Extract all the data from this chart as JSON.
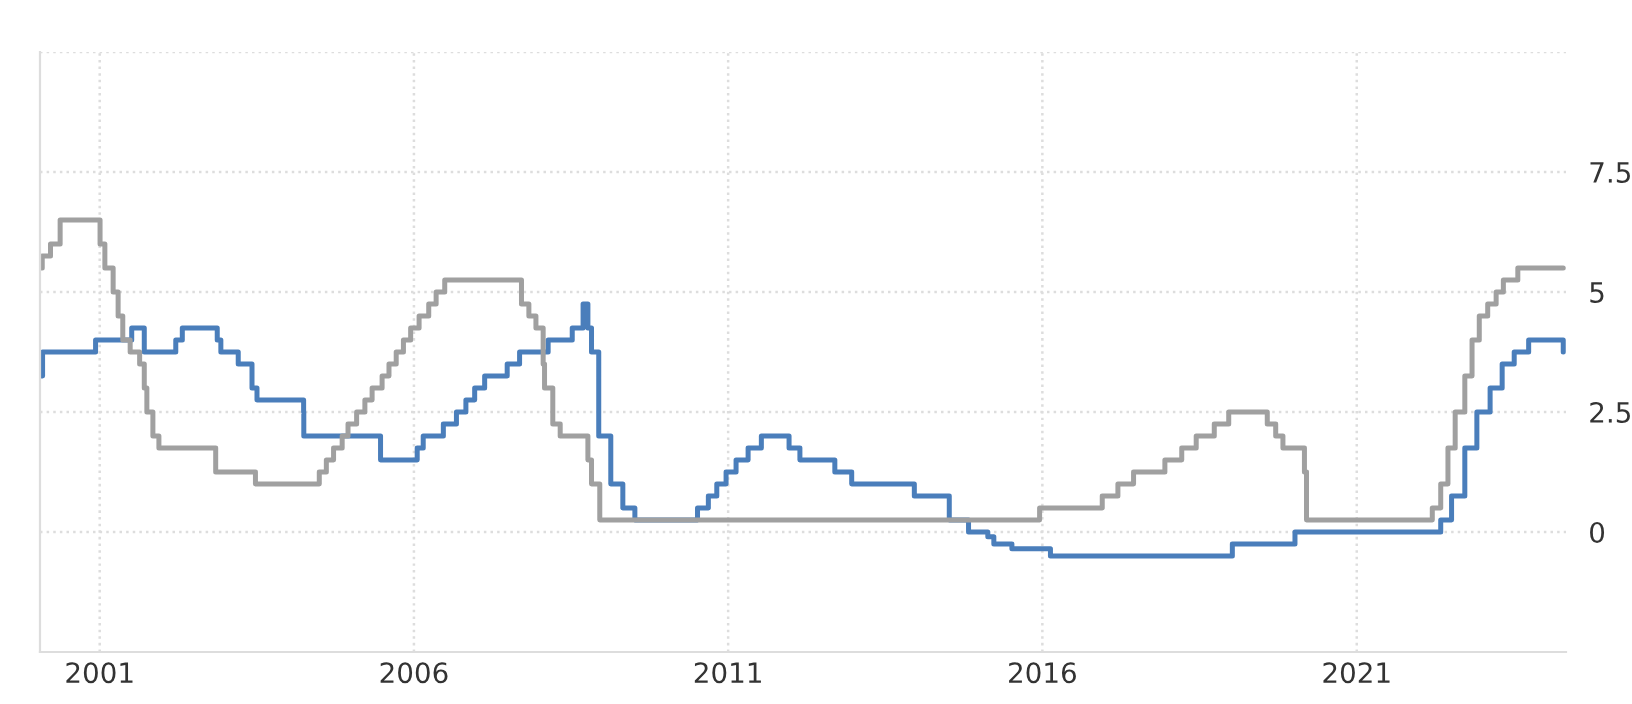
{
  "chart_data": {
    "type": "step",
    "xlim": [
      "2000-01-20",
      "2024-05-01"
    ],
    "xticks": [
      {
        "value": "2001-01-01",
        "label": "2001"
      },
      {
        "value": "2006-01-01",
        "label": "2006"
      },
      {
        "value": "2011-01-01",
        "label": "2011"
      },
      {
        "value": "2016-01-01",
        "label": "2016"
      },
      {
        "value": "2021-01-01",
        "label": "2021"
      }
    ],
    "ylim": [
      -2.5,
      10
    ],
    "yticks": [
      0,
      2.5,
      5,
      7.5,
      {
        "value": 10,
        "label": null
      }
    ],
    "grid": true,
    "series": [
      {
        "color": "#4a7ebb",
        "x": [
          "2000-01-20",
          "2000-02-04",
          "2000-12-08",
          "2001-07-06",
          "2001-09-17",
          "2002-03-19",
          "2002-04-26",
          "2002-11-15",
          "2002-12-06",
          "2003-03-17",
          "2003-06-05",
          "2003-07-04",
          "2004-03-31",
          "2004-04-01",
          "2005-06-21",
          "2006-01-20",
          "2006-02-24",
          "2006-06-21",
          "2006-09-05",
          "2006-10-30",
          "2006-12-20",
          "2007-02-16",
          "2007-06-27",
          "2007-09-07",
          "2008-02-20",
          "2008-07-09",
          "2008-09-10",
          "2008-10-08",
          "2008-10-29",
          "2008-12-10",
          "2009-02-18",
          "2009-04-29",
          "2009-07-08",
          "2010-07-07",
          "2010-09-08",
          "2010-10-27",
          "2010-12-20",
          "2011-02-16",
          "2011-04-27",
          "2011-07-13",
          "2011-12-21",
          "2012-02-22",
          "2012-09-12",
          "2012-12-19",
          "2013-12-18",
          "2014-07-09",
          "2014-10-29",
          "2015-02-18",
          "2015-03-25",
          "2015-07-08",
          "2016-02-17",
          "2019-01-09",
          "2020-01-08",
          "2022-05-04",
          "2022-07-06",
          "2022-09-21",
          "2022-11-30",
          "2023-02-15",
          "2023-04-26",
          "2023-07-05",
          "2023-09-27",
          "2024-04-15"
        ],
        "values": [
          3.25,
          3.75,
          4.0,
          4.25,
          3.75,
          4.0,
          4.25,
          4.0,
          3.75,
          3.5,
          3.0,
          2.75,
          2.5,
          2.0,
          1.5,
          1.75,
          2.0,
          2.25,
          2.5,
          2.75,
          3.0,
          3.25,
          3.5,
          3.75,
          4.0,
          4.25,
          4.75,
          4.25,
          3.75,
          2.0,
          1.0,
          0.5,
          0.25,
          0.5,
          0.75,
          1.0,
          1.25,
          1.5,
          1.75,
          2.0,
          1.75,
          1.5,
          1.25,
          1.0,
          0.75,
          0.25,
          0.0,
          -0.1,
          -0.25,
          -0.35,
          -0.5,
          -0.25,
          0.0,
          0.25,
          0.75,
          1.75,
          2.5,
          3.0,
          3.5,
          3.75,
          4.0,
          3.75
        ]
      },
      {
        "color": "#a0a0a0",
        "x": [
          "2000-01-20",
          "2000-02-02",
          "2000-03-21",
          "2000-05-16",
          "2001-01-03",
          "2001-01-31",
          "2001-03-20",
          "2001-04-18",
          "2001-05-15",
          "2001-06-27",
          "2001-08-21",
          "2001-09-17",
          "2001-10-02",
          "2001-11-06",
          "2001-12-11",
          "2002-11-06",
          "2003-06-25",
          "2004-06-30",
          "2004-08-10",
          "2004-09-21",
          "2004-11-10",
          "2004-12-14",
          "2005-02-02",
          "2005-03-22",
          "2005-05-03",
          "2005-06-30",
          "2005-08-09",
          "2005-09-20",
          "2005-11-01",
          "2005-12-13",
          "2006-01-31",
          "2006-03-28",
          "2006-05-10",
          "2006-06-29",
          "2007-09-18",
          "2007-10-31",
          "2007-12-11",
          "2008-01-22",
          "2008-01-30",
          "2008-03-18",
          "2008-04-30",
          "2008-10-08",
          "2008-10-29",
          "2008-12-16",
          "2015-12-16",
          "2016-12-14",
          "2017-03-15",
          "2017-06-14",
          "2017-12-13",
          "2018-03-21",
          "2018-06-13",
          "2018-09-26",
          "2018-12-19",
          "2019-07-31",
          "2019-09-18",
          "2019-10-30",
          "2020-03-03",
          "2020-03-15",
          "2022-03-16",
          "2022-05-04",
          "2022-06-15",
          "2022-07-27",
          "2022-09-21",
          "2022-11-02",
          "2022-12-14",
          "2023-02-01",
          "2023-03-22",
          "2023-05-03",
          "2023-07-26",
          "2024-04-15"
        ],
        "values": [
          5.5,
          5.75,
          6.0,
          6.5,
          6.0,
          5.5,
          5.0,
          4.5,
          4.0,
          3.75,
          3.5,
          3.0,
          2.5,
          2.0,
          1.75,
          1.25,
          1.0,
          1.25,
          1.5,
          1.75,
          2.0,
          2.25,
          2.5,
          2.75,
          3.0,
          3.25,
          3.5,
          3.75,
          4.0,
          4.25,
          4.5,
          4.75,
          5.0,
          5.25,
          4.75,
          4.5,
          4.25,
          3.5,
          3.0,
          2.25,
          2.0,
          1.5,
          1.0,
          0.25,
          0.5,
          0.75,
          1.0,
          1.25,
          1.5,
          1.75,
          2.0,
          2.25,
          2.5,
          2.25,
          2.0,
          1.75,
          1.25,
          0.25,
          0.5,
          1.0,
          1.75,
          2.5,
          3.25,
          4.0,
          4.5,
          4.75,
          5.0,
          5.25,
          5.5,
          5.5
        ]
      }
    ]
  }
}
